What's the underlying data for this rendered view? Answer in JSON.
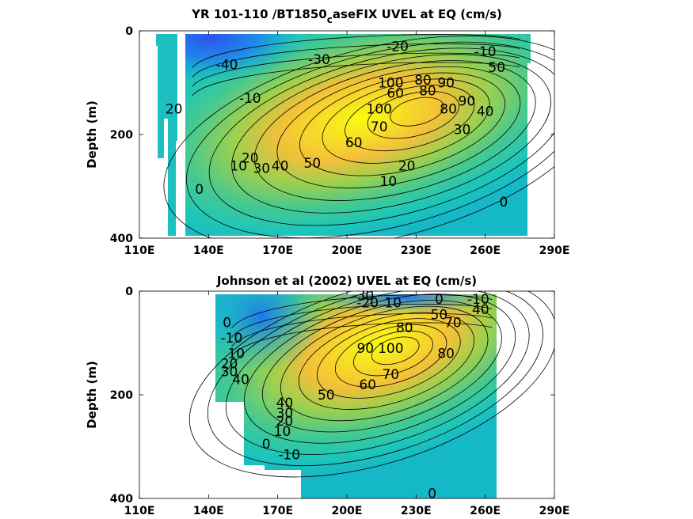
{
  "colors": {
    "background": "#ffffff",
    "colormap": [
      "#3e3df0",
      "#1f78f0",
      "#15b0d8",
      "#1ec6b8",
      "#46c990",
      "#9bd050",
      "#f2c03a",
      "#f8e024",
      "#f9fb14"
    ]
  },
  "chart_data": [
    {
      "type": "heatmap",
      "title_main": "YR 101-110 /BT1850",
      "title_sub": "c",
      "title_rest": "aseFIX UVEL at EQ (cm/s)",
      "xlabel": "",
      "ylabel": "Depth (m)",
      "xlim": [
        110,
        290
      ],
      "ylim": [
        400,
        0
      ],
      "x_ticks": [
        "110E",
        "140E",
        "170E",
        "200E",
        "230E",
        "260E",
        "290E"
      ],
      "y_ticks": [
        "0",
        "200",
        "400"
      ],
      "data_extent": {
        "lon": [
          117,
          280
        ],
        "depth": [
          0,
          395
        ]
      },
      "jet_core": {
        "lon": 232,
        "depth": 150,
        "max": 100
      },
      "contour_labels": [
        {
          "text": "-40",
          "lon": 148,
          "depth": 65
        },
        {
          "text": "-30",
          "lon": 188,
          "depth": 55
        },
        {
          "text": "-20",
          "lon": 222,
          "depth": 30
        },
        {
          "text": "-10",
          "lon": 260,
          "depth": 40
        },
        {
          "text": "50",
          "lon": 265,
          "depth": 70
        },
        {
          "text": "20",
          "lon": 125,
          "depth": 150
        },
        {
          "text": "-10",
          "lon": 158,
          "depth": 130
        },
        {
          "text": "100",
          "lon": 219,
          "depth": 100
        },
        {
          "text": "80",
          "lon": 233,
          "depth": 95
        },
        {
          "text": "60",
          "lon": 221,
          "depth": 120
        },
        {
          "text": "90",
          "lon": 243,
          "depth": 100
        },
        {
          "text": "80",
          "lon": 235,
          "depth": 115
        },
        {
          "text": "100",
          "lon": 214,
          "depth": 150
        },
        {
          "text": "90",
          "lon": 252,
          "depth": 135
        },
        {
          "text": "80",
          "lon": 244,
          "depth": 150
        },
        {
          "text": "40",
          "lon": 260,
          "depth": 155
        },
        {
          "text": "30",
          "lon": 250,
          "depth": 190
        },
        {
          "text": "70",
          "lon": 214,
          "depth": 185
        },
        {
          "text": "60",
          "lon": 203,
          "depth": 215
        },
        {
          "text": "20",
          "lon": 158,
          "depth": 245
        },
        {
          "text": "10",
          "lon": 153,
          "depth": 260
        },
        {
          "text": "30",
          "lon": 163,
          "depth": 265
        },
        {
          "text": "40",
          "lon": 171,
          "depth": 260
        },
        {
          "text": "50",
          "lon": 185,
          "depth": 255
        },
        {
          "text": "20",
          "lon": 226,
          "depth": 260
        },
        {
          "text": "10",
          "lon": 218,
          "depth": 290
        },
        {
          "text": "0",
          "lon": 136,
          "depth": 305
        },
        {
          "text": "0",
          "lon": 268,
          "depth": 330
        }
      ]
    },
    {
      "type": "heatmap",
      "title": "Johnson et al (2002) UVEL at EQ (cm/s)",
      "xlabel": "",
      "ylabel": "Depth (m)",
      "xlim": [
        110,
        290
      ],
      "ylim": [
        400,
        0
      ],
      "x_ticks": [
        "110E",
        "140E",
        "170E",
        "200E",
        "230E",
        "260E",
        "290E"
      ],
      "y_ticks": [
        "0",
        "200",
        "400"
      ],
      "data_extent": {
        "lon": [
          143,
          265
        ],
        "depth": [
          0,
          400
        ]
      },
      "jet_core": {
        "lon": 222,
        "depth": 110,
        "max": 100
      },
      "contour_labels": [
        {
          "text": "-30",
          "lon": 207,
          "depth": 8
        },
        {
          "text": "-20",
          "lon": 209,
          "depth": 22
        },
        {
          "text": "10",
          "lon": 220,
          "depth": 22
        },
        {
          "text": "0",
          "lon": 240,
          "depth": 15
        },
        {
          "text": "-10",
          "lon": 257,
          "depth": 15
        },
        {
          "text": "50",
          "lon": 240,
          "depth": 45
        },
        {
          "text": "40",
          "lon": 258,
          "depth": 35
        },
        {
          "text": "70",
          "lon": 246,
          "depth": 60
        },
        {
          "text": "80",
          "lon": 225,
          "depth": 70
        },
        {
          "text": "0",
          "lon": 148,
          "depth": 60
        },
        {
          "text": "-10",
          "lon": 150,
          "depth": 90
        },
        {
          "text": "10",
          "lon": 152,
          "depth": 120
        },
        {
          "text": "20",
          "lon": 149,
          "depth": 140
        },
        {
          "text": "30",
          "lon": 149,
          "depth": 155
        },
        {
          "text": "40",
          "lon": 154,
          "depth": 170
        },
        {
          "text": "90",
          "lon": 208,
          "depth": 110
        },
        {
          "text": "100",
          "lon": 219,
          "depth": 110
        },
        {
          "text": "70",
          "lon": 219,
          "depth": 160
        },
        {
          "text": "80",
          "lon": 243,
          "depth": 120
        },
        {
          "text": "60",
          "lon": 209,
          "depth": 180
        },
        {
          "text": "50",
          "lon": 191,
          "depth": 200
        },
        {
          "text": "40",
          "lon": 173,
          "depth": 215
        },
        {
          "text": "30",
          "lon": 173,
          "depth": 235
        },
        {
          "text": "20",
          "lon": 173,
          "depth": 250
        },
        {
          "text": "10",
          "lon": 172,
          "depth": 270
        },
        {
          "text": "0",
          "lon": 165,
          "depth": 295
        },
        {
          "text": "-10",
          "lon": 175,
          "depth": 315
        },
        {
          "text": "0",
          "lon": 237,
          "depth": 390
        }
      ]
    }
  ]
}
